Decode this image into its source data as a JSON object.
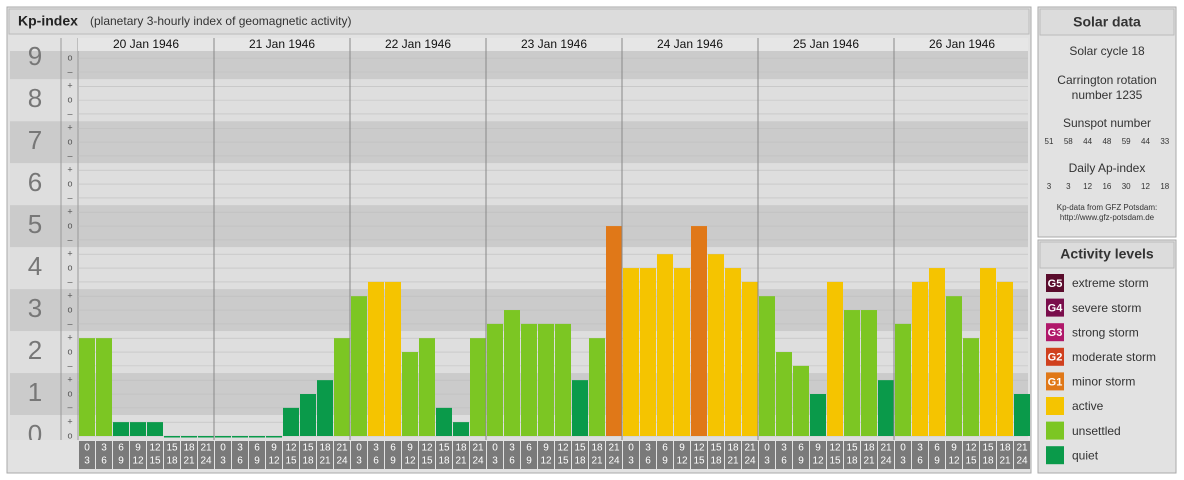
{
  "chart_data": {
    "type": "bar",
    "title": "Kp-index",
    "subtitle": "(planetary 3-hourly index of geomagnetic activity)",
    "ylim": [
      0,
      9.17
    ],
    "yticks": [
      0,
      1,
      2,
      3,
      4,
      5,
      6,
      7,
      8,
      9
    ],
    "grid": true,
    "minor_ticks": [
      {
        "value": 0,
        "label": "o"
      },
      {
        "value": 0.33,
        "label": "+"
      },
      {
        "value": 0.67,
        "label": "–"
      },
      {
        "value": 1,
        "label": "o"
      },
      {
        "value": 1.33,
        "label": "+"
      },
      {
        "value": 1.67,
        "label": "–"
      },
      {
        "value": 2,
        "label": "o"
      },
      {
        "value": 2.33,
        "label": "+"
      },
      {
        "value": 2.67,
        "label": "–"
      },
      {
        "value": 3,
        "label": "o"
      },
      {
        "value": 3.33,
        "label": "+"
      },
      {
        "value": 3.67,
        "label": "–"
      },
      {
        "value": 4,
        "label": "o"
      },
      {
        "value": 4.33,
        "label": "+"
      },
      {
        "value": 4.67,
        "label": "–"
      },
      {
        "value": 5,
        "label": "o"
      },
      {
        "value": 5.33,
        "label": "+"
      },
      {
        "value": 5.67,
        "label": "–"
      },
      {
        "value": 6,
        "label": "o"
      },
      {
        "value": 6.33,
        "label": "+"
      },
      {
        "value": 6.67,
        "label": "–"
      },
      {
        "value": 7,
        "label": "o"
      },
      {
        "value": 7.33,
        "label": "+"
      },
      {
        "value": 7.67,
        "label": "–"
      },
      {
        "value": 8,
        "label": "o"
      },
      {
        "value": 8.33,
        "label": "+"
      },
      {
        "value": 8.67,
        "label": "–"
      },
      {
        "value": 9,
        "label": "o"
      }
    ],
    "time_slots": [
      [
        "0",
        "3"
      ],
      [
        "3",
        "6"
      ],
      [
        "6",
        "9"
      ],
      [
        "9",
        "12"
      ],
      [
        "12",
        "15"
      ],
      [
        "15",
        "18"
      ],
      [
        "18",
        "21"
      ],
      [
        "21",
        "24"
      ]
    ],
    "days": [
      {
        "date": "20 Jan 1946",
        "values": [
          2.33,
          2.33,
          0.33,
          0.33,
          0.33,
          0,
          0,
          0
        ],
        "colors": [
          "#7cc623",
          "#7cc623",
          "#0a9a4a",
          "#0a9a4a",
          "#0a9a4a",
          "#0a9a4a",
          "#0a9a4a",
          "#0a9a4a"
        ]
      },
      {
        "date": "21 Jan 1946",
        "values": [
          0,
          0,
          0,
          0,
          0.67,
          1,
          1.33,
          2.33
        ],
        "colors": [
          "#0a9a4a",
          "#0a9a4a",
          "#0a9a4a",
          "#0a9a4a",
          "#0a9a4a",
          "#0a9a4a",
          "#0a9a4a",
          "#7cc623"
        ]
      },
      {
        "date": "22 Jan 1946",
        "values": [
          3.33,
          3.67,
          3.67,
          2,
          2.33,
          0.67,
          0.33,
          2.33
        ],
        "colors": [
          "#7cc623",
          "#f5c400",
          "#f5c400",
          "#7cc623",
          "#7cc623",
          "#0a9a4a",
          "#0a9a4a",
          "#7cc623"
        ]
      },
      {
        "date": "23 Jan 1946",
        "values": [
          2.67,
          3,
          2.67,
          2.67,
          2.67,
          1.33,
          2.33,
          5
        ],
        "colors": [
          "#7cc623",
          "#7cc623",
          "#7cc623",
          "#7cc623",
          "#7cc623",
          "#0a9a4a",
          "#7cc623",
          "#e07818"
        ]
      },
      {
        "date": "24 Jan 1946",
        "values": [
          4,
          4,
          4.33,
          4,
          5,
          4.33,
          4,
          3.67
        ],
        "colors": [
          "#f5c400",
          "#f5c400",
          "#f5c400",
          "#f5c400",
          "#e07818",
          "#f5c400",
          "#f5c400",
          "#f5c400"
        ]
      },
      {
        "date": "25 Jan 1946",
        "values": [
          3.33,
          2,
          1.67,
          1,
          3.67,
          3,
          3,
          1.33
        ],
        "colors": [
          "#7cc623",
          "#7cc623",
          "#7cc623",
          "#0a9a4a",
          "#f5c400",
          "#7cc623",
          "#7cc623",
          "#0a9a4a"
        ]
      },
      {
        "date": "26 Jan 1946",
        "values": [
          2.67,
          3.67,
          4,
          3.33,
          2.33,
          4,
          3.67,
          1
        ],
        "colors": [
          "#7cc623",
          "#f5c400",
          "#f5c400",
          "#7cc623",
          "#7cc623",
          "#f5c400",
          "#f5c400",
          "#0a9a4a"
        ]
      }
    ]
  },
  "solar_data": {
    "title": "Solar data",
    "cycle": "Solar cycle 18",
    "carrington": [
      "Carrington rotation",
      "number 1235"
    ],
    "sunspot_label": "Sunspot number",
    "sunspot_numbers": [
      51,
      58,
      44,
      48,
      59,
      44,
      33
    ],
    "ap_label": "Daily Ap-index",
    "ap_values": [
      3,
      3,
      12,
      16,
      30,
      12,
      18
    ],
    "source": [
      "Kp-data from GFZ Potsdam:",
      "http://www.gfz-potsdam.de"
    ]
  },
  "activity_levels": {
    "title": "Activity levels",
    "levels": [
      {
        "code": "G5",
        "name": "extreme storm",
        "color": "#5a0c2c"
      },
      {
        "code": "G4",
        "name": "severe storm",
        "color": "#7a0e4c"
      },
      {
        "code": "G3",
        "name": "strong storm",
        "color": "#b0186a"
      },
      {
        "code": "G2",
        "name": "moderate storm",
        "color": "#d0401e"
      },
      {
        "code": "G1",
        "name": "minor storm",
        "color": "#e07818"
      },
      {
        "name": "active",
        "color": "#f5c400"
      },
      {
        "name": "unsettled",
        "color": "#7cc623"
      },
      {
        "name": "quiet",
        "color": "#0a9a4a"
      }
    ]
  }
}
